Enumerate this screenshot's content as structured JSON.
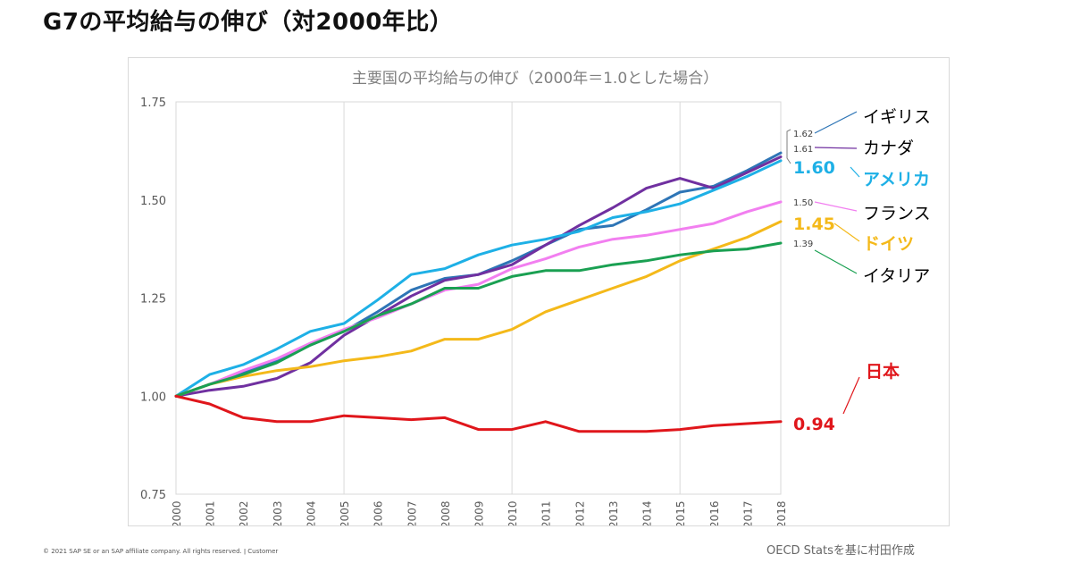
{
  "heading": "G7の平均給与の伸び（対2000年比）",
  "footer_left": "© 2021 SAP SE or an SAP affiliate company. All rights reserved.  ǀ  Customer",
  "footer_right": "OECD Statsを基に村田作成",
  "chart_data": {
    "type": "line",
    "title": "主要国の平均給与の伸び（2000年＝1.0とした場合）",
    "xlabel": "",
    "ylabel": "",
    "x": [
      "2000",
      "2001",
      "2002",
      "2003",
      "2004",
      "2005",
      "2006",
      "2007",
      "2008",
      "2009",
      "2010",
      "2011",
      "2012",
      "2013",
      "2014",
      "2015",
      "2016",
      "2017",
      "2018"
    ],
    "ylim": [
      0.75,
      1.75
    ],
    "yticks": [
      "0.75",
      "1.00",
      "1.25",
      "1.50",
      "1.75"
    ],
    "grid": "vertical lines every 5 years",
    "series": [
      {
        "name": "イギリス",
        "color": "#2e75b6",
        "end_label": "1.62",
        "values": [
          1.0,
          1.03,
          1.06,
          1.09,
          1.13,
          1.165,
          1.215,
          1.27,
          1.3,
          1.31,
          1.345,
          1.385,
          1.425,
          1.435,
          1.475,
          1.52,
          1.535,
          1.575,
          1.62
        ]
      },
      {
        "name": "カナダ",
        "color": "#7030a0",
        "end_label": "1.61",
        "values": [
          1.0,
          1.015,
          1.025,
          1.045,
          1.085,
          1.155,
          1.205,
          1.255,
          1.295,
          1.31,
          1.335,
          1.385,
          1.435,
          1.48,
          1.53,
          1.555,
          1.53,
          1.57,
          1.61
        ]
      },
      {
        "name": "アメリカ",
        "color": "#1eb0e6",
        "end_label": "1.60",
        "values": [
          1.0,
          1.055,
          1.08,
          1.12,
          1.165,
          1.185,
          1.245,
          1.31,
          1.325,
          1.36,
          1.385,
          1.4,
          1.42,
          1.455,
          1.47,
          1.49,
          1.525,
          1.56,
          1.6
        ]
      },
      {
        "name": "フランス",
        "color": "#f27ff0",
        "end_label": "1.50",
        "values": [
          1.0,
          1.03,
          1.065,
          1.095,
          1.135,
          1.17,
          1.2,
          1.235,
          1.27,
          1.285,
          1.325,
          1.35,
          1.38,
          1.4,
          1.41,
          1.425,
          1.44,
          1.47,
          1.495
        ]
      },
      {
        "name": "ドイツ",
        "color": "#f4b91a",
        "end_label": "1.45",
        "values": [
          1.0,
          1.03,
          1.05,
          1.065,
          1.075,
          1.09,
          1.1,
          1.115,
          1.145,
          1.145,
          1.17,
          1.215,
          1.245,
          1.275,
          1.305,
          1.345,
          1.375,
          1.405,
          1.445
        ]
      },
      {
        "name": "イタリア",
        "color": "#1aa052",
        "end_label": "1.39",
        "values": [
          1.0,
          1.03,
          1.055,
          1.085,
          1.13,
          1.165,
          1.205,
          1.235,
          1.275,
          1.275,
          1.305,
          1.32,
          1.32,
          1.335,
          1.345,
          1.36,
          1.37,
          1.375,
          1.39
        ]
      },
      {
        "name": "日本",
        "color": "#e0161b",
        "end_label": "0.94",
        "values": [
          1.0,
          0.98,
          0.945,
          0.935,
          0.935,
          0.95,
          0.945,
          0.94,
          0.945,
          0.915,
          0.915,
          0.935,
          0.91,
          0.91,
          0.91,
          0.915,
          0.925,
          0.93,
          0.935
        ]
      }
    ]
  }
}
